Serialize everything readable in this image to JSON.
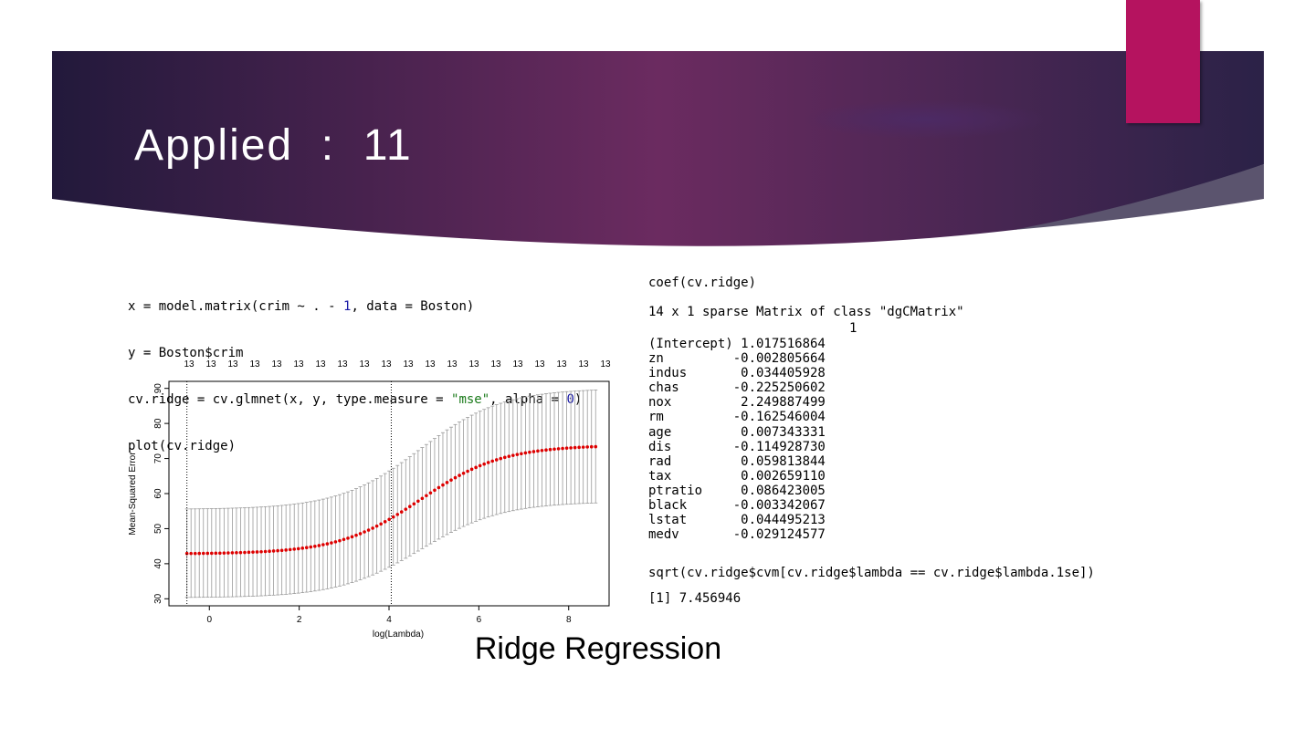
{
  "slide": {
    "title": "Applied  :  11",
    "caption": "Ridge Regression",
    "colors": {
      "banner_dark": "#2a1e45",
      "banner_mid": "#6a2a5e",
      "accent": "#b5135f"
    }
  },
  "code_left": {
    "lines": [
      [
        "x = model.matrix(crim ~ . - ",
        "1",
        ", data = Boston)"
      ],
      [
        "y = Boston$crim"
      ],
      [
        "cv.ridge = cv.glmnet(x, y, type.measure = ",
        "\"mse\"",
        ", alpha = ",
        "0",
        ")"
      ],
      [
        "plot(cv.ridge)"
      ]
    ]
  },
  "console": {
    "coef_call": "coef(cv.ridge)",
    "matrix_header": "14 x 1 sparse Matrix of class \"dgCMatrix\"",
    "column_header": "1",
    "rows": [
      {
        "name": "(Intercept)",
        "value": " 1.017516864"
      },
      {
        "name": "zn",
        "value": "-0.002805664"
      },
      {
        "name": "indus",
        "value": " 0.034405928"
      },
      {
        "name": "chas",
        "value": "-0.225250602"
      },
      {
        "name": "nox",
        "value": " 2.249887499"
      },
      {
        "name": "rm",
        "value": "-0.162546004"
      },
      {
        "name": "age",
        "value": " 0.007343331"
      },
      {
        "name": "dis",
        "value": "-0.114928730"
      },
      {
        "name": "rad",
        "value": " 0.059813844"
      },
      {
        "name": "tax",
        "value": " 0.002659110"
      },
      {
        "name": "ptratio",
        "value": " 0.086423005"
      },
      {
        "name": "black",
        "value": "-0.003342067"
      },
      {
        "name": "lstat",
        "value": " 0.044495213"
      },
      {
        "name": "medv",
        "value": "-0.029124577"
      }
    ],
    "sqrt_call": "sqrt(cv.ridge$cvm[cv.ridge$lambda == cv.ridge$lambda.1se])",
    "sqrt_result": "[1] 7.456946"
  },
  "chart_data": {
    "type": "scatter",
    "xlabel": "log(Lambda)",
    "ylabel": "Mean-Squared Error",
    "xlim": [
      -0.9,
      8.9
    ],
    "ylim": [
      28,
      92
    ],
    "x_ticks": [
      0,
      2,
      4,
      6,
      8
    ],
    "y_ticks": [
      30,
      40,
      50,
      60,
      70,
      80,
      90
    ],
    "top_axis_label": "13",
    "top_axis_count": 20,
    "lambda_min_log": -0.5,
    "lambda_1se_log": 4.05,
    "x_start": -0.5,
    "x_end": 8.6,
    "n_points": 100,
    "mse_min": 42.8,
    "mse_max": 73.8,
    "mse_midpoint_log": 4.7,
    "mse_steepness": 1.1,
    "err_lower_at_min": 30.3,
    "err_upper_at_min": 55.5,
    "err_lower_at_max": 57.7,
    "err_upper_at_max": 90.0,
    "point_color": "#dd0000",
    "errorbar_color": "#9a9a9a"
  }
}
